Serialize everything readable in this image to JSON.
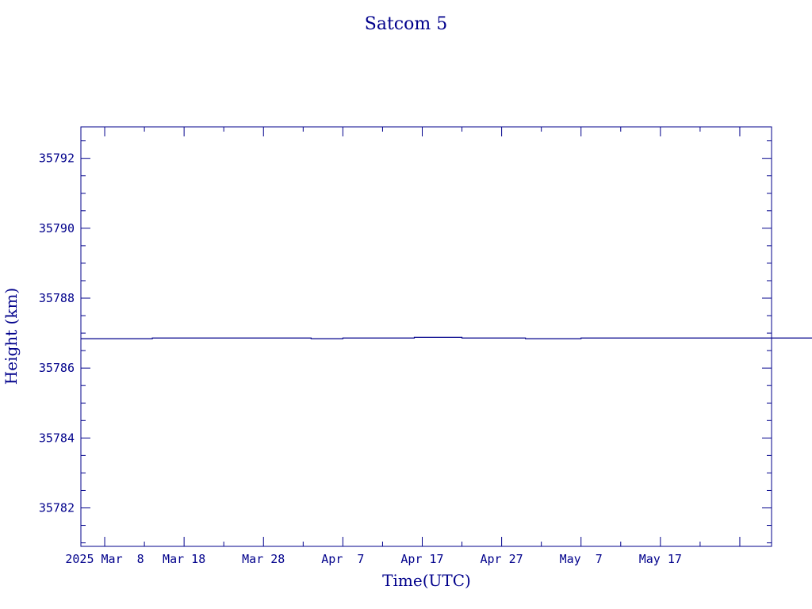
{
  "chart_data": {
    "type": "line",
    "title": "Satcom 5",
    "xlabel": "Time(UTC)",
    "ylabel": "Height (km)",
    "colors": {
      "foreground": "#00008b",
      "background": "#ffffff"
    },
    "grid": false,
    "legend": "none",
    "x_range": [
      "2025-02-23",
      "2025-05-21"
    ],
    "ylim": [
      35780.9,
      35792.9
    ],
    "y_ticks": [
      35782,
      35784,
      35786,
      35788,
      35790,
      35792
    ],
    "y_minor_step": 0.5,
    "x_ticks": [
      {
        "date": "2025-02-26",
        "label": "2025 Mar  8"
      },
      {
        "date": "2025-03-08",
        "label": "Mar 18"
      },
      {
        "date": "2025-03-18",
        "label": "Mar 28"
      },
      {
        "date": "2025-03-28",
        "label": "Apr  7"
      },
      {
        "date": "2025-04-07",
        "label": "Apr 17"
      },
      {
        "date": "2025-04-17",
        "label": "Apr 27"
      },
      {
        "date": "2025-04-27",
        "label": "May  7"
      },
      {
        "date": "2025-05-07",
        "label": "May 17"
      },
      {
        "date": "2025-05-17",
        "label": ""
      }
    ],
    "x_minor_days": 5,
    "series": [
      {
        "points": [
          [
            "2025-02-23",
            35786.84
          ],
          [
            "2025-03-04",
            35786.84
          ],
          [
            "2025-03-04",
            35786.86
          ],
          [
            "2025-03-24",
            35786.86
          ],
          [
            "2025-03-24",
            35786.84
          ],
          [
            "2025-03-28",
            35786.84
          ],
          [
            "2025-03-28",
            35786.86
          ],
          [
            "2025-04-06",
            35786.86
          ],
          [
            "2025-04-06",
            35786.88
          ],
          [
            "2025-04-12",
            35786.88
          ],
          [
            "2025-04-12",
            35786.86
          ],
          [
            "2025-04-20",
            35786.86
          ],
          [
            "2025-04-20",
            35786.84
          ],
          [
            "2025-04-27",
            35786.84
          ],
          [
            "2025-04-27",
            35786.86
          ],
          [
            "2025-05-30",
            35786.86
          ]
        ]
      }
    ]
  }
}
